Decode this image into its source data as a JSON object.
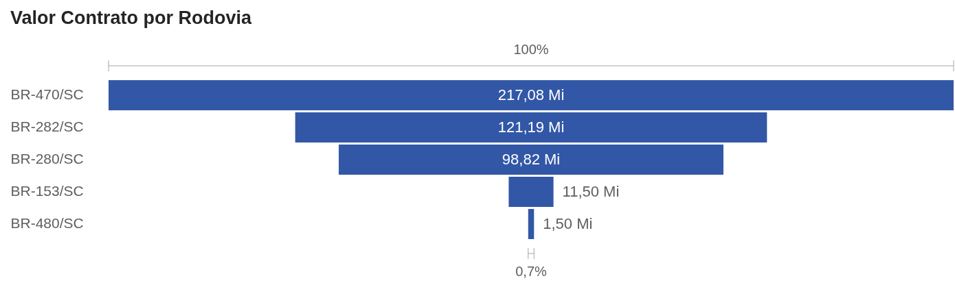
{
  "chart_data": {
    "type": "other",
    "title": "Valor Contrato por Rodovia",
    "categories": [
      "BR-470/SC",
      "BR-282/SC",
      "BR-280/SC",
      "BR-153/SC",
      "BR-480/SC"
    ],
    "values": [
      217.08,
      121.19,
      98.82,
      11.5,
      1.5
    ],
    "color": "#3257a6",
    "value_labels": [
      "217,08 Mi",
      "121,19 Mi",
      "98,82 Mi",
      "11,50 Mi",
      "1,50 Mi"
    ],
    "annotations": [
      {
        "text": "100%",
        "y": "BR-470/SC"
      },
      {
        "text": "0,7%",
        "y": "BR-480/SC"
      }
    ]
  }
}
